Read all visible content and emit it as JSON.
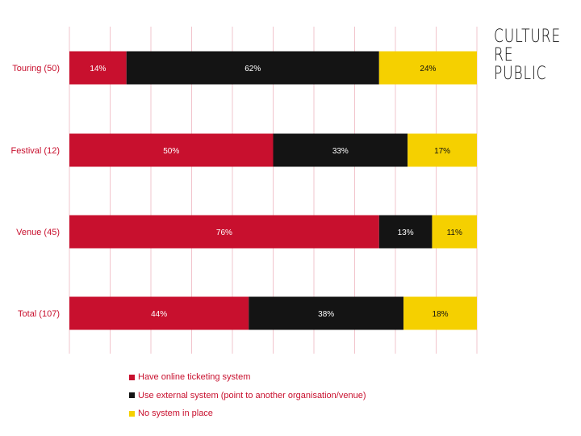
{
  "logo": {
    "lines": [
      "CULTURE",
      "RE",
      "PUBLIC"
    ]
  },
  "colors": {
    "online": "#c8102e",
    "external": "#141414",
    "none": "#f5d000",
    "grid": "#f2c4cc",
    "label": "#c8102e"
  },
  "chart_data": {
    "type": "bar",
    "orientation": "horizontal",
    "stacked": true,
    "normalized": true,
    "title": "",
    "xlabel": "",
    "ylabel": "",
    "xlim": [
      0,
      100
    ],
    "grid": true,
    "legend_position": "bottom",
    "categories": [
      "Touring (50)",
      "Festival (12)",
      "Venue (45)",
      "Total (107)"
    ],
    "series": [
      {
        "name": "Have online ticketing system",
        "color": "#c8102e",
        "values": [
          14,
          50,
          76,
          44
        ],
        "labels": [
          "14%",
          "50%",
          "76%",
          "44%"
        ]
      },
      {
        "name": "Use external system (point to another organisation/venue)",
        "color": "#141414",
        "values": [
          62,
          33,
          13,
          38
        ],
        "labels": [
          "62%",
          "33%",
          "13%",
          "38%"
        ]
      },
      {
        "name": "No system in place",
        "color": "#f5d000",
        "values": [
          24,
          17,
          11,
          18
        ],
        "labels": [
          "24%",
          "17%",
          "11%",
          "18%"
        ]
      }
    ]
  }
}
